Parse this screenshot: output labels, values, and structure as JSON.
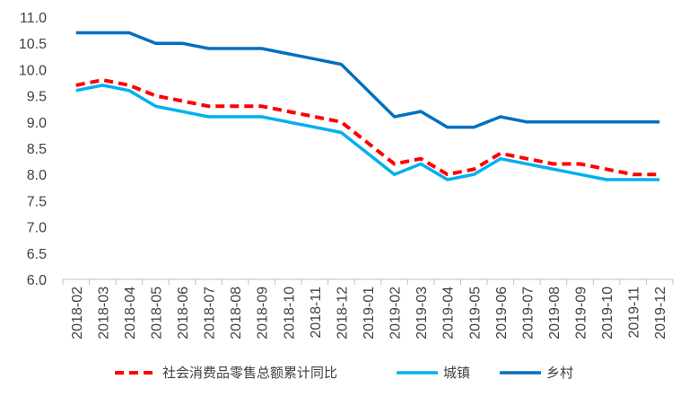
{
  "chart_data": {
    "type": "line",
    "title": "",
    "xlabel": "",
    "ylabel": "",
    "ylim": [
      6.0,
      11.0
    ],
    "yticks": [
      "6.0",
      "6.5",
      "7.0",
      "7.5",
      "8.0",
      "8.5",
      "9.0",
      "9.5",
      "10.0",
      "10.5",
      "11.0"
    ],
    "grid": false,
    "legend_position": "bottom",
    "categories": [
      "2018-02",
      "2018-03",
      "2018-04",
      "2018-05",
      "2018-06",
      "2018-07",
      "2018-08",
      "2018-09",
      "2018-10",
      "2018-11",
      "2018-12",
      "2019-01",
      "2019-02",
      "2019-03",
      "2019-04",
      "2019-05",
      "2019-06",
      "2019-07",
      "2019-08",
      "2019-09",
      "2019-10",
      "2019-11",
      "2019-12"
    ],
    "series": [
      {
        "name": "社会消费品零售总额累计同比",
        "color": "#ff0000",
        "style": "dashed",
        "values": [
          9.7,
          9.8,
          9.7,
          9.5,
          9.4,
          9.3,
          9.3,
          9.3,
          9.2,
          9.1,
          9.0,
          null,
          8.2,
          8.3,
          8.0,
          8.1,
          8.4,
          8.3,
          8.2,
          8.2,
          8.1,
          8.0,
          8.0
        ]
      },
      {
        "name": "城镇",
        "color": "#00b0f0",
        "style": "solid",
        "values": [
          9.6,
          9.7,
          9.6,
          9.3,
          9.2,
          9.1,
          9.1,
          9.1,
          9.0,
          8.9,
          8.8,
          null,
          8.0,
          8.2,
          7.9,
          8.0,
          8.3,
          8.2,
          8.1,
          8.0,
          7.9,
          7.9,
          7.9
        ]
      },
      {
        "name": "乡村",
        "color": "#0070c0",
        "style": "solid",
        "values": [
          10.7,
          10.7,
          10.7,
          10.5,
          10.5,
          10.4,
          10.4,
          10.4,
          10.3,
          10.2,
          10.1,
          null,
          9.1,
          9.2,
          8.9,
          8.9,
          9.1,
          9.0,
          9.0,
          9.0,
          9.0,
          9.0,
          9.0
        ]
      }
    ]
  }
}
